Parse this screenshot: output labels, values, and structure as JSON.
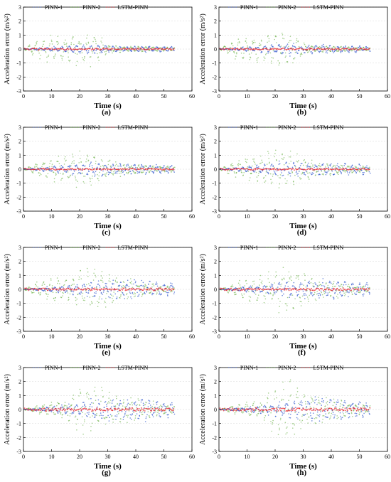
{
  "chart_data": [
    {
      "panel": "(a)",
      "type": "scatter",
      "xlabel": "Time (s)",
      "ylabel": "Acceleration error (m/s²)",
      "xlim": [
        0,
        60
      ],
      "ylim": [
        -3,
        3
      ],
      "xticks": [
        0,
        10,
        20,
        30,
        40,
        50,
        60
      ],
      "yticks": [
        -3,
        -2,
        -1,
        0,
        1,
        2,
        3
      ],
      "legend": [
        "PINN-1",
        "PINN-2",
        "LSTM-PINN"
      ],
      "legend_position": "top",
      "series": [
        {
          "name": "PINN-1",
          "color": "#3a5fcd",
          "x": [
            0,
            10,
            20,
            25,
            30,
            35,
            40,
            45,
            50,
            54
          ],
          "y": [
            0.0,
            0.15,
            0.3,
            0.35,
            0.25,
            0.2,
            0.2,
            0.2,
            0.2,
            0.2
          ]
        },
        {
          "name": "PINN-2",
          "color": "#5aa832",
          "x": [
            0,
            5,
            10,
            15,
            20,
            25,
            30,
            35,
            40,
            45,
            50,
            54
          ],
          "y": [
            0.0,
            0.7,
            0.9,
            0.9,
            1.1,
            1.2,
            0.4,
            0.2,
            0.2,
            0.2,
            0.15,
            0.15
          ]
        },
        {
          "name": "LSTM-PINN",
          "color": "#e8202a",
          "x": [
            0,
            10,
            20,
            30,
            40,
            50,
            54
          ],
          "y": [
            0.05,
            0.05,
            0.05,
            0.05,
            0.05,
            0.05,
            0.05
          ]
        }
      ]
    },
    {
      "panel": "(b)",
      "type": "scatter",
      "xlabel": "Time (s)",
      "ylabel": "Acceleration error (m/s²)",
      "xlim": [
        0,
        60
      ],
      "ylim": [
        -3,
        3
      ],
      "xticks": [
        0,
        10,
        20,
        30,
        40,
        50,
        60
      ],
      "yticks": [
        -3,
        -2,
        -1,
        0,
        1,
        2,
        3
      ],
      "legend": [
        "PINN-1",
        "PINN-2",
        "LSTM-PINN"
      ],
      "legend_position": "top",
      "series": [
        {
          "name": "PINN-1",
          "color": "#3a5fcd",
          "x": [
            0,
            10,
            20,
            25,
            30,
            35,
            40,
            45,
            50,
            54
          ],
          "y": [
            0.0,
            0.15,
            0.35,
            0.45,
            0.3,
            0.3,
            0.3,
            0.25,
            0.2,
            0.2
          ]
        },
        {
          "name": "PINN-2",
          "color": "#5aa832",
          "x": [
            0,
            5,
            10,
            15,
            20,
            25,
            30,
            35,
            40,
            45,
            50,
            54
          ],
          "y": [
            0.0,
            0.6,
            0.8,
            0.9,
            1.2,
            1.3,
            0.5,
            0.25,
            0.2,
            0.2,
            0.15,
            0.15
          ]
        },
        {
          "name": "LSTM-PINN",
          "color": "#e8202a",
          "x": [
            0,
            10,
            20,
            30,
            40,
            50,
            54
          ],
          "y": [
            0.05,
            0.05,
            0.05,
            0.05,
            0.05,
            0.05,
            0.05
          ]
        }
      ]
    },
    {
      "panel": "(c)",
      "type": "scatter",
      "xlabel": "Time (s)",
      "ylabel": "Acceleration error (m/s²)",
      "xlim": [
        0,
        60
      ],
      "ylim": [
        -3,
        3
      ],
      "xticks": [
        0,
        10,
        20,
        30,
        40,
        50,
        60
      ],
      "yticks": [
        -3,
        -2,
        -1,
        0,
        1,
        2,
        3
      ],
      "legend": [
        "PINN-1",
        "PINN-2",
        "LSTM-PINN"
      ],
      "legend_position": "top",
      "series": [
        {
          "name": "PINN-1",
          "color": "#3a5fcd",
          "x": [
            0,
            10,
            20,
            25,
            30,
            35,
            40,
            45,
            50,
            54
          ],
          "y": [
            0.0,
            0.2,
            0.45,
            0.5,
            0.45,
            0.45,
            0.4,
            0.35,
            0.3,
            0.3
          ]
        },
        {
          "name": "PINN-2",
          "color": "#5aa832",
          "x": [
            0,
            5,
            10,
            15,
            20,
            25,
            30,
            35,
            40,
            45,
            50,
            54
          ],
          "y": [
            0.0,
            0.5,
            0.8,
            1.0,
            1.2,
            1.1,
            0.8,
            0.5,
            0.4,
            0.3,
            0.25,
            0.2
          ]
        },
        {
          "name": "LSTM-PINN",
          "color": "#e8202a",
          "x": [
            0,
            10,
            20,
            30,
            40,
            50,
            54
          ],
          "y": [
            0.05,
            0.05,
            0.05,
            0.05,
            0.05,
            0.05,
            0.05
          ]
        }
      ]
    },
    {
      "panel": "(d)",
      "type": "scatter",
      "xlabel": "Time (s)",
      "ylabel": "Acceleration error (m/s²)",
      "xlim": [
        0,
        60
      ],
      "ylim": [
        -3,
        3
      ],
      "xticks": [
        0,
        10,
        20,
        30,
        40,
        50,
        60
      ],
      "yticks": [
        -3,
        -2,
        -1,
        0,
        1,
        2,
        3
      ],
      "legend": [
        "PINN-1",
        "PINN-2",
        "LSTM-PINN"
      ],
      "legend_position": "top",
      "series": [
        {
          "name": "PINN-1",
          "color": "#3a5fcd",
          "x": [
            0,
            10,
            20,
            25,
            30,
            35,
            40,
            45,
            50,
            54
          ],
          "y": [
            0.0,
            0.2,
            0.45,
            0.55,
            0.5,
            0.5,
            0.45,
            0.4,
            0.35,
            0.3
          ]
        },
        {
          "name": "PINN-2",
          "color": "#5aa832",
          "x": [
            0,
            5,
            10,
            15,
            20,
            25,
            30,
            35,
            40,
            45,
            50,
            54
          ],
          "y": [
            0.0,
            0.5,
            0.8,
            1.0,
            1.3,
            1.2,
            0.9,
            0.6,
            0.45,
            0.35,
            0.25,
            0.2
          ]
        },
        {
          "name": "LSTM-PINN",
          "color": "#e8202a",
          "x": [
            0,
            10,
            20,
            30,
            40,
            50,
            54
          ],
          "y": [
            0.05,
            0.05,
            0.05,
            0.05,
            0.05,
            0.05,
            0.05
          ]
        }
      ]
    },
    {
      "panel": "(e)",
      "type": "scatter",
      "xlabel": "Time (s)",
      "ylabel": "Acceleration error (m/s²)",
      "xlim": [
        0,
        60
      ],
      "ylim": [
        -3,
        3
      ],
      "xticks": [
        0,
        10,
        20,
        30,
        40,
        50,
        60
      ],
      "yticks": [
        -3,
        -2,
        -1,
        0,
        1,
        2,
        3
      ],
      "legend": [
        "PINN-1",
        "PINN-2",
        "LSTM-PINN"
      ],
      "legend_position": "top",
      "series": [
        {
          "name": "PINN-1",
          "color": "#3a5fcd",
          "x": [
            0,
            10,
            20,
            25,
            30,
            35,
            40,
            45,
            50,
            54
          ],
          "y": [
            0.0,
            0.2,
            0.4,
            0.6,
            0.6,
            0.7,
            0.65,
            0.6,
            0.5,
            0.4
          ]
        },
        {
          "name": "PINN-2",
          "color": "#5aa832",
          "x": [
            0,
            5,
            10,
            15,
            20,
            25,
            30,
            35,
            40,
            45,
            50,
            54
          ],
          "y": [
            0.0,
            0.5,
            0.8,
            1.0,
            1.4,
            1.7,
            1.2,
            0.8,
            0.7,
            0.5,
            0.3,
            0.2
          ]
        },
        {
          "name": "LSTM-PINN",
          "color": "#e8202a",
          "x": [
            0,
            10,
            20,
            30,
            40,
            50,
            54
          ],
          "y": [
            0.08,
            0.08,
            0.08,
            0.08,
            0.08,
            0.08,
            0.08
          ]
        }
      ]
    },
    {
      "panel": "(f)",
      "type": "scatter",
      "xlabel": "Time (s)",
      "ylabel": "Acceleration error (m/s²)",
      "xlim": [
        0,
        60
      ],
      "ylim": [
        -3,
        3
      ],
      "xticks": [
        0,
        10,
        20,
        30,
        40,
        50,
        60
      ],
      "yticks": [
        -3,
        -2,
        -1,
        0,
        1,
        2,
        3
      ],
      "legend": [
        "PINN-1",
        "PINN-2",
        "LSTM-PINN"
      ],
      "legend_position": "top",
      "series": [
        {
          "name": "PINN-1",
          "color": "#3a5fcd",
          "x": [
            0,
            10,
            20,
            25,
            30,
            35,
            40,
            45,
            50,
            54
          ],
          "y": [
            0.0,
            0.2,
            0.4,
            0.6,
            0.65,
            0.7,
            0.7,
            0.6,
            0.5,
            0.4
          ]
        },
        {
          "name": "PINN-2",
          "color": "#5aa832",
          "x": [
            0,
            5,
            10,
            15,
            20,
            25,
            30,
            35,
            40,
            45,
            50,
            54
          ],
          "y": [
            0.0,
            0.4,
            0.8,
            0.9,
            1.5,
            1.8,
            1.3,
            0.9,
            0.7,
            0.5,
            0.3,
            0.2
          ]
        },
        {
          "name": "LSTM-PINN",
          "color": "#e8202a",
          "x": [
            0,
            10,
            20,
            30,
            40,
            50,
            54
          ],
          "y": [
            0.08,
            0.08,
            0.08,
            0.08,
            0.08,
            0.08,
            0.08
          ]
        }
      ]
    },
    {
      "panel": "(g)",
      "type": "scatter",
      "xlabel": "Time (s)",
      "ylabel": "Acceleration error (m/s²)",
      "xlim": [
        0,
        60
      ],
      "ylim": [
        -3,
        3
      ],
      "xticks": [
        0,
        10,
        20,
        30,
        40,
        50,
        60
      ],
      "yticks": [
        -3,
        -2,
        -1,
        0,
        1,
        2,
        3
      ],
      "legend": [
        "PINN-1",
        "PINN-2",
        "LSTM-PINN"
      ],
      "legend_position": "top",
      "series": [
        {
          "name": "PINN-1",
          "color": "#3a5fcd",
          "x": [
            0,
            10,
            20,
            25,
            30,
            35,
            40,
            45,
            50,
            54
          ],
          "y": [
            0.0,
            0.2,
            0.4,
            0.7,
            0.8,
            0.8,
            0.8,
            0.7,
            0.6,
            0.5
          ]
        },
        {
          "name": "PINN-2",
          "color": "#5aa832",
          "x": [
            0,
            5,
            10,
            15,
            20,
            25,
            30,
            35,
            40,
            45,
            50,
            54
          ],
          "y": [
            0.0,
            0.3,
            0.5,
            0.7,
            1.6,
            1.8,
            1.4,
            1.0,
            0.8,
            0.6,
            0.4,
            0.3
          ]
        },
        {
          "name": "LSTM-PINN",
          "color": "#e8202a",
          "x": [
            0,
            10,
            20,
            30,
            40,
            50,
            54
          ],
          "y": [
            0.1,
            0.1,
            0.1,
            0.1,
            0.1,
            0.1,
            0.1
          ]
        }
      ]
    },
    {
      "panel": "(h)",
      "type": "scatter",
      "xlabel": "Time (s)",
      "ylabel": "Acceleration error (m/s²)",
      "xlim": [
        0,
        60
      ],
      "ylim": [
        -3,
        3
      ],
      "xticks": [
        0,
        10,
        20,
        30,
        40,
        50,
        60
      ],
      "yticks": [
        -3,
        -2,
        -1,
        0,
        1,
        2,
        3
      ],
      "legend": [
        "PINN-1",
        "PINN-2",
        "LSTM-PINN"
      ],
      "legend_position": "top",
      "series": [
        {
          "name": "PINN-1",
          "color": "#3a5fcd",
          "x": [
            0,
            10,
            20,
            25,
            30,
            35,
            40,
            45,
            50,
            54
          ],
          "y": [
            0.0,
            0.2,
            0.4,
            0.7,
            0.8,
            0.9,
            0.85,
            0.75,
            0.6,
            0.5
          ]
        },
        {
          "name": "PINN-2",
          "color": "#5aa832",
          "x": [
            0,
            5,
            10,
            15,
            20,
            25,
            30,
            35,
            40,
            45,
            50,
            54
          ],
          "y": [
            0.0,
            0.3,
            0.5,
            0.6,
            1.8,
            2.0,
            1.5,
            1.1,
            0.9,
            0.6,
            0.4,
            0.3
          ]
        },
        {
          "name": "LSTM-PINN",
          "color": "#e8202a",
          "x": [
            0,
            10,
            20,
            30,
            40,
            50,
            54
          ],
          "y": [
            0.1,
            0.1,
            0.1,
            0.1,
            0.1,
            0.1,
            0.1
          ]
        }
      ]
    }
  ]
}
